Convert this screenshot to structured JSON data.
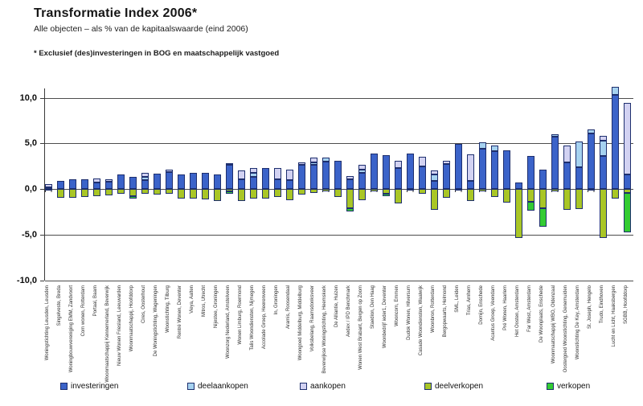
{
  "header": {
    "title": "Transformatie Index 2006*",
    "subtitle": "Alle objecten – als % van de kapitaalswaarde (eind 2006)",
    "footnote": "* Exclusief (des)investeringen in BOG en maatschappelijk vastgoed"
  },
  "chart_data": {
    "type": "bar",
    "stacked": true,
    "title": "Transformatie Index 2006*",
    "subtitle": "Alle objecten – als % van de kapitaalswaarde (eind 2006)",
    "footnote": "* Exclusief (des)investeringen in BOG en maatschappelijk vastgoed",
    "ylim": [
      -10,
      10
    ],
    "yticks": [
      10,
      5,
      0,
      -5,
      -10
    ],
    "ytick_labels": [
      "10,0",
      "5,0",
      "0,0",
      "-5,0",
      "-10,0"
    ],
    "grid": "horizontal",
    "legend_position": "bottom",
    "colors": {
      "investeringen": "#3B63C9",
      "deelaankopen": "#A6D2F0",
      "aankopen": "#D2D2F2",
      "deelverkopen": "#A9C626",
      "verkopen": "#33CC33",
      "segment_border": "#1E2F6E"
    },
    "categories": [
      "Woningstichting Leusden, Leusden",
      "Singelveste, Breda",
      "Woningbouwvereniging EMM, Zandvoort",
      "Com wonen, Rotterdam",
      "Portaal, Baarn",
      "Woonmaatschappij Kennemerland, Beverwijk",
      "Nieuw Wonen Friesland, Leeuwarden",
      "Woonmaatschappij, Hoofddorp",
      "Cires, Oosterhout",
      "De Woningstichting, Wageningen",
      "Woonstichting, Tilburg",
      "Rentré Wonen, Deventer",
      "Vieya, Aalten",
      "Mitros, Utrecht",
      "Nijestee, Groningen",
      "Woonzorg Nederland, Amstelveen",
      "Wonen Limburg, Roermond",
      "Talis Woondiensten, Nijmegen",
      "Accolade Groep, Heerenveen",
      "In, Groningen",
      "Aramis, Roosendaal",
      "Woongoed Middelburg, Middelburg",
      "Volksbelang, Raamsdonksveer",
      "Beverwijkse Woningstichting, Heemskerk",
      "De Alliantie, Huizen",
      "Aedex / IPD Benchmark",
      "Wonen West Brabant, Bergen op Zoom",
      "Staedion, Den Haag",
      "Woonbedrijf ieder1, Deventer",
      "Wooncom, Emmen",
      "Dudok Wonen, Hilversum",
      "Casade Woondiensten, Waalwijk",
      "Woonbron, Rotterdam",
      "Bergopwaarts, Helmond",
      "SML, Leiden",
      "Trias, Arnhem",
      "Domijn, Enschede",
      "Acantus Groep, Veendam",
      "Pré Wonen, Haarlem",
      "Het Oosten, Amsterdam",
      "Far West, Amsterdam",
      "De Woonplaats, Enschede",
      "Woonmaatschappij WBO, Oldenzaal",
      "Oostergoed Woonstichting, Genemuiden",
      "Woonstichting De Key, Amsterdam",
      "St. Joseph, Hengelo",
      "Trudo, Eindhoven",
      "Lucht en Licht, Haaksbergen",
      "SGBB, Hoofddorp"
    ],
    "series": [
      {
        "name": "investeringen",
        "values": [
          0.2,
          0.9,
          1.1,
          1.1,
          0.7,
          0.75,
          1.6,
          1.3,
          1.0,
          1.65,
          1.85,
          1.6,
          1.8,
          1.75,
          1.6,
          2.6,
          1.05,
          1.35,
          2.3,
          1.05,
          1.0,
          2.6,
          2.6,
          3.0,
          3.1,
          1.1,
          1.8,
          3.85,
          3.7,
          2.3,
          3.9,
          2.5,
          0.85,
          2.7,
          4.9,
          0.85,
          4.4,
          4.15,
          4.2,
          0.7,
          3.6,
          2.15,
          5.7,
          2.9,
          2.4,
          6.1,
          3.6,
          10.3,
          1.55
        ]
      },
      {
        "name": "deelaankopen",
        "values": [
          0,
          0,
          0,
          0,
          0,
          0,
          0,
          0,
          0.35,
          0,
          0,
          0,
          0,
          0,
          0,
          0,
          0,
          0.4,
          0,
          0,
          0,
          0,
          0.3,
          0.4,
          0,
          0,
          0.35,
          0,
          0,
          0,
          0,
          0,
          0.7,
          0,
          0,
          0,
          0.7,
          0.65,
          0,
          0,
          0,
          0,
          0.3,
          0,
          2.8,
          0.4,
          1.7,
          0.85,
          0
        ]
      },
      {
        "name": "aankopen",
        "values": [
          0.3,
          0,
          0,
          0,
          0.45,
          0.35,
          0,
          0,
          0.4,
          0,
          0.25,
          0,
          0,
          0,
          0,
          0.2,
          1.0,
          0.5,
          0,
          1.25,
          1.1,
          0.3,
          0.5,
          0,
          0,
          0.35,
          0.45,
          0,
          0,
          0.8,
          0,
          1.0,
          0.45,
          0.4,
          0,
          2.95,
          0,
          0,
          0,
          0,
          0,
          0,
          0,
          1.9,
          0,
          0,
          0.5,
          0,
          7.85
        ]
      },
      {
        "name": "deelverkopen",
        "values": [
          -0.2,
          -1.0,
          -0.95,
          -0.85,
          -0.8,
          -0.7,
          -0.55,
          -0.8,
          -0.55,
          -0.6,
          -0.5,
          -1.1,
          -1.05,
          -1.15,
          -1.35,
          -0.3,
          -1.3,
          -1.1,
          -1.1,
          -0.9,
          -1.2,
          -0.6,
          -0.4,
          -0.3,
          -0.9,
          -2.1,
          -1.2,
          -0.25,
          -0.5,
          -1.6,
          -0.15,
          -0.5,
          -2.3,
          -1.0,
          -0.1,
          -1.3,
          -0.3,
          -0.9,
          -1.5,
          -5.35,
          -1.4,
          -2.1,
          -0.3,
          -2.3,
          -2.2,
          -0.2,
          -5.4,
          -1.1,
          -0.4
        ]
      },
      {
        "name": "verkopen",
        "values": [
          0,
          0,
          0,
          0,
          0,
          0,
          0,
          -0.3,
          0,
          0,
          0,
          0,
          0,
          0,
          0,
          -0.2,
          0,
          0,
          0,
          0,
          0,
          0,
          0,
          0,
          0,
          -0.4,
          0,
          0,
          -0.3,
          0,
          0,
          0,
          0,
          0,
          0,
          0,
          0,
          0,
          0,
          0,
          -1.0,
          -2.05,
          0,
          0,
          0,
          0,
          0,
          0,
          -4.4
        ]
      }
    ],
    "legend": [
      "investeringen",
      "deelaankopen",
      "aankopen",
      "deelverkopen",
      "verkopen"
    ]
  },
  "legend_x_positions": [
    75,
    233,
    373,
    528,
    680
  ]
}
